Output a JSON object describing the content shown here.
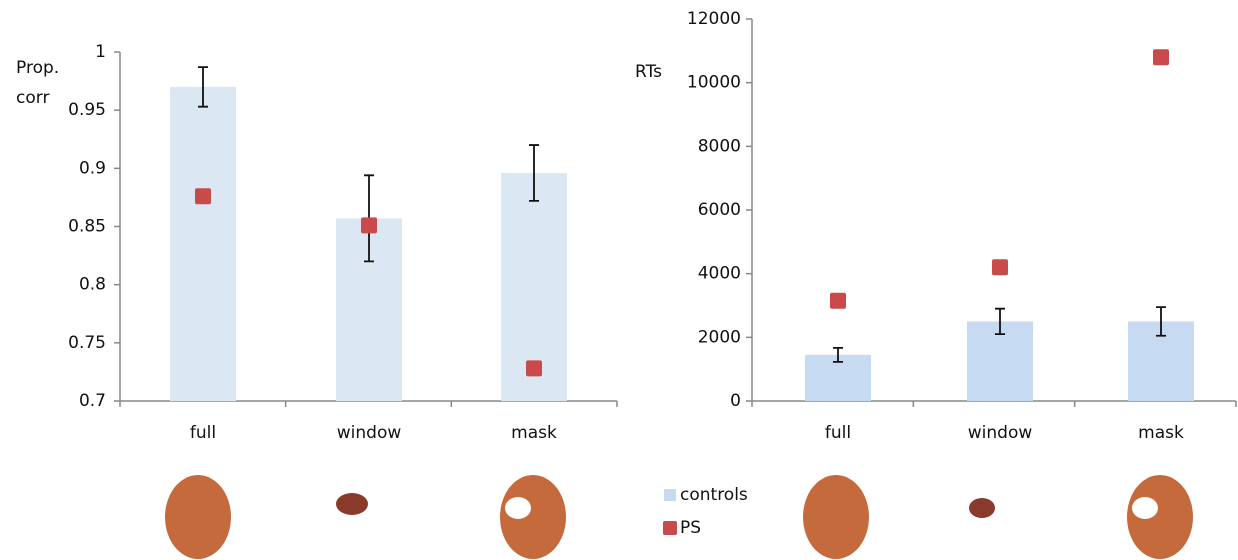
{
  "chart_data": [
    {
      "type": "bar",
      "ylabel": [
        "Prop.",
        "corr"
      ],
      "categories": [
        "full",
        "window",
        "mask"
      ],
      "ylim": [
        0.7,
        1
      ],
      "yticks": [
        0.7,
        0.75,
        0.8,
        0.85,
        0.9,
        0.95,
        1
      ],
      "series": [
        {
          "name": "controls",
          "color": "#dce7f4",
          "values": [
            0.97,
            0.857,
            0.896
          ],
          "errors": [
            0.017,
            0.037,
            0.024
          ]
        },
        {
          "name": "PS",
          "color": "#c94a4a",
          "values": [
            0.876,
            0.851,
            0.728
          ]
        }
      ]
    },
    {
      "type": "bar",
      "ylabel": [
        "RTs"
      ],
      "categories": [
        "full",
        "window",
        "mask"
      ],
      "ylim": [
        0,
        12000
      ],
      "yticks": [
        0,
        2000,
        4000,
        6000,
        8000,
        10000,
        12000
      ],
      "series": [
        {
          "color": "#c6dbf1",
          "values": [
            1450,
            2500,
            2500
          ],
          "errors": [
            220,
            400,
            450
          ]
        },
        {
          "color": "#c94a4a",
          "values": [
            3150,
            4200,
            10800
          ]
        }
      ]
    }
  ]
}
